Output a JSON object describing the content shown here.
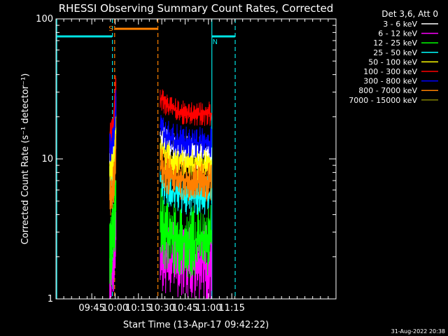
{
  "chart_data": {
    "type": "line",
    "title": "RHESSI Observing Summary Count Rates, Corrected",
    "xlabel": "Start Time (13-Apr-17 09:42:22)",
    "ylabel": "Corrected Count Rate (s⁻¹ detector⁻¹)",
    "yscale": "log",
    "xlim_minutes": [
      -20,
      160
    ],
    "ylim": [
      1,
      100
    ],
    "x_tick_labels": [
      {
        "t": 3,
        "label": "09:45"
      },
      {
        "t": 18,
        "label": "10:00"
      },
      {
        "t": 33,
        "label": "10:15"
      },
      {
        "t": 48,
        "label": "10:30"
      },
      {
        "t": 63,
        "label": "10:45"
      },
      {
        "t": 78,
        "label": "11:00"
      },
      {
        "t": 93,
        "label": "11:15"
      }
    ],
    "y_tick_labels": [
      {
        "v": 1,
        "label": "1"
      },
      {
        "v": 10,
        "label": "10"
      },
      {
        "v": 100,
        "label": "100"
      }
    ],
    "legend": {
      "header": "Det 3,6, Att 0",
      "position": "top-right",
      "entries": [
        {
          "label": "3 - 6 keV",
          "color": "#ffffff"
        },
        {
          "label": "6 - 12 keV",
          "color": "#ff00ff"
        },
        {
          "label": "12 - 25 keV",
          "color": "#00ff00"
        },
        {
          "label": "25 - 50 keV",
          "color": "#00ffff"
        },
        {
          "label": "50 - 100 keV",
          "color": "#ffff00"
        },
        {
          "label": "100 - 300 keV",
          "color": "#ff0000"
        },
        {
          "label": "300 - 800 keV",
          "color": "#0000ff"
        },
        {
          "label": "800 - 7000 keV",
          "color": "#ff8000"
        },
        {
          "label": "7000 - 15000 keV",
          "color": "#808000"
        }
      ]
    },
    "series_order_back_to_front": [
      "3 - 6 keV",
      "6 - 12 keV",
      "12 - 25 keV",
      "25 - 50 keV",
      "50 - 100 keV",
      "100 - 300 keV",
      "300 - 800 keV",
      "800 - 7000 keV",
      "7000 - 15000 keV"
    ],
    "segments": [
      {
        "x": [
          14.5,
          18.5
        ],
        "series": [
          {
            "name": "100 - 300 keV",
            "values_start": 14,
            "values_end": 35
          },
          {
            "name": "300 - 800 keV",
            "values_start": 12,
            "values_end": 25
          },
          {
            "name": "3 - 6 keV",
            "values_start": 11,
            "values_end": 22
          },
          {
            "name": "50 - 100 keV",
            "values_start": 8,
            "values_end": 18
          },
          {
            "name": "25 - 50 keV",
            "values_start": 7,
            "values_end": 15
          },
          {
            "name": "800 - 7000 keV",
            "values_start": 5.5,
            "values_end": 12
          },
          {
            "name": "12 - 25 keV",
            "values_start": 2.3,
            "values_end": 5
          },
          {
            "name": "6 - 12 keV",
            "values_start": 1.6,
            "values_end": 3
          }
        ]
      },
      {
        "x": [
          47,
          80
        ],
        "series": [
          {
            "name": "100 - 300 keV",
            "values_start": 28,
            "values_end": 21
          },
          {
            "name": "300 - 800 keV",
            "values_start": 17,
            "values_end": 13
          },
          {
            "name": "3 - 6 keV",
            "values_start": 15,
            "values_end": 11
          },
          {
            "name": "50 - 100 keV",
            "values_start": 12,
            "values_end": 9
          },
          {
            "name": "800 - 7000 keV",
            "values_start": 9,
            "values_end": 7
          },
          {
            "name": "25 - 50 keV",
            "values_start": 7,
            "values_end": 5.5
          },
          {
            "name": "12 - 25 keV",
            "values_start": 3.4,
            "values_end": 2.6
          },
          {
            "name": "6 - 12 keV",
            "values_start": 2.2,
            "values_end": 1.8
          }
        ]
      }
    ],
    "status_bars": [
      {
        "label": "",
        "color": "#00e5e5",
        "x_start": -20,
        "x_end": 16,
        "level": 75
      },
      {
        "label": "S",
        "color": "#ff8000",
        "x_start": 18,
        "x_end": 45.5,
        "level": 85
      },
      {
        "label": "N",
        "color": "#00e5e5",
        "x_start": 80,
        "x_end": 95,
        "level": 75
      }
    ],
    "vlines": [
      {
        "t": -19.5,
        "color": "#00e5e5",
        "style": "solid"
      },
      {
        "t": 16.3,
        "color": "#00e5e5",
        "style": "dashed"
      },
      {
        "t": 17.7,
        "color": "#ff8000",
        "style": "dashed"
      },
      {
        "t": 45.5,
        "color": "#ff8000",
        "style": "dashed"
      },
      {
        "t": 80.2,
        "color": "#00e5e5",
        "style": "solid"
      },
      {
        "t": 95.2,
        "color": "#00e5e5",
        "style": "dashed"
      }
    ]
  },
  "footer": {
    "timestamp": "31-Aug-2022 20:38"
  }
}
